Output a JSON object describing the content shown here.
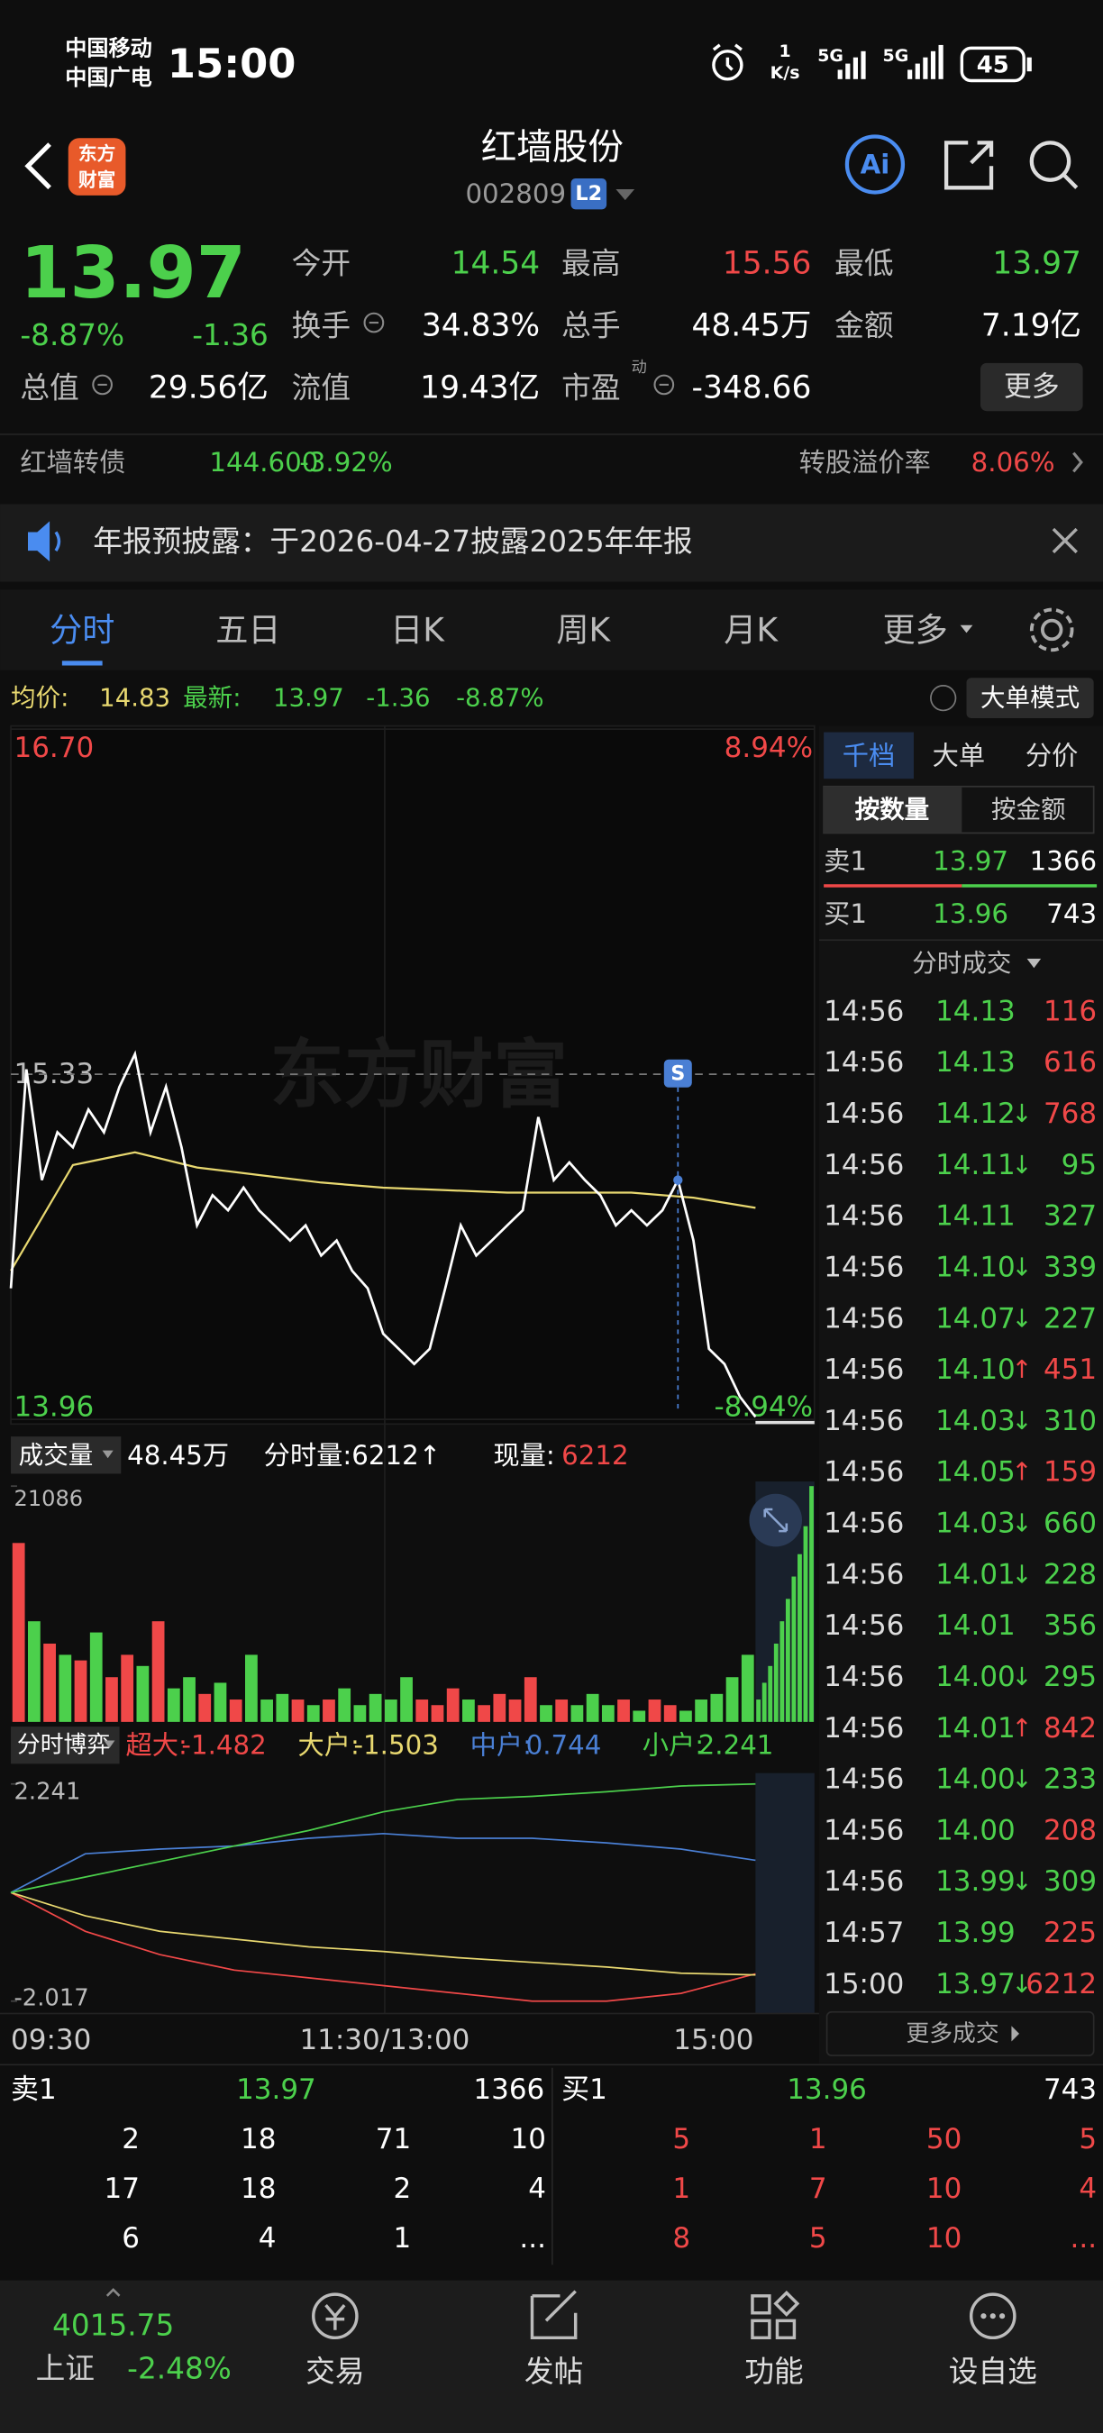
{
  "status_bar": {
    "carriers": [
      "中国移动",
      "中国广电"
    ],
    "time": "15:00",
    "net_speed": "1",
    "net_unit": "K/s",
    "battery": "45"
  },
  "header": {
    "logo": [
      "东方",
      "财富"
    ],
    "name": "红墙股份",
    "code": "002809",
    "level": "L2"
  },
  "quote": {
    "price": "13.97",
    "change_pct": "-8.87%",
    "change": "-1.36",
    "stats": [
      {
        "label": "今开",
        "value": "14.54",
        "color": "#4cd04c"
      },
      {
        "label": "最高",
        "value": "15.56",
        "color": "#f04848"
      },
      {
        "label": "最低",
        "value": "13.97",
        "color": "#4cd04c"
      },
      {
        "label": "换手",
        "value": "34.83%",
        "color": "#ffffff"
      },
      {
        "label": "总手",
        "value": "48.45万",
        "color": "#ffffff"
      },
      {
        "label": "金额",
        "value": "7.19亿",
        "color": "#ffffff"
      },
      {
        "label": "总值",
        "value": "29.56亿",
        "color": "#ffffff"
      },
      {
        "label": "流值",
        "value": "19.43亿",
        "color": "#ffffff"
      },
      {
        "label": "市盈",
        "note": "动",
        "value": "-348.66",
        "color": "#ffffff"
      }
    ],
    "more": "更多"
  },
  "bond": {
    "name": "红墙转债",
    "price": "144.600",
    "change": "-3.92%",
    "premium_label": "转股溢价率",
    "premium": "8.06%"
  },
  "notice": "年报预披露：于2026-04-27披露2025年年报",
  "tabs": [
    "分时",
    "五日",
    "日K",
    "周K",
    "月K",
    "更多"
  ],
  "info_bar": {
    "avg_label": "均价:",
    "avg": "14.83",
    "latest_label": "最新:",
    "latest": "13.97",
    "change": "-1.36",
    "change_pct": "-8.87%",
    "mode": "大单模式"
  },
  "intraday": {
    "type": "line",
    "ylim": [
      13.96,
      16.7
    ],
    "yticks": [
      {
        "value": 16.7,
        "label": "16.70"
      },
      {
        "value": 15.33,
        "label": "15.33"
      },
      13.96
    ],
    "pct_labels": [
      "8.94%",
      "-8.94%"
    ],
    "watermark": "东方财富",
    "marker": "S",
    "price": {
      "color": "#ffffff",
      "values": [
        14.48,
        15.35,
        14.91,
        15.1,
        15.04,
        15.19,
        15.1,
        15.28,
        15.41,
        15.1,
        15.28,
        15.04,
        14.73,
        14.85,
        14.79,
        14.88,
        14.79,
        14.73,
        14.67,
        14.73,
        14.61,
        14.67,
        14.55,
        14.48,
        14.3,
        14.24,
        14.18,
        14.24,
        14.48,
        14.73,
        14.61,
        14.67,
        14.73,
        14.79,
        15.16,
        14.91,
        14.98,
        14.91,
        14.85,
        14.73,
        14.79,
        14.73,
        14.79,
        14.91,
        14.67,
        14.24,
        14.18,
        14.05,
        13.97
      ]
    },
    "average": {
      "color": "#e8d870",
      "values": [
        14.55,
        14.97,
        15.02,
        14.96,
        14.93,
        14.9,
        14.88,
        14.87,
        14.86,
        14.86,
        14.86,
        14.84,
        14.8
      ]
    },
    "time_labels": [
      "09:30",
      "11:30/13:00",
      "15:00"
    ]
  },
  "volume": {
    "type": "bar",
    "label": "成交量",
    "total": "48.45万",
    "minute_label": "分时量:6212↑",
    "current_label": "现量:",
    "current": "6212",
    "ylim": [
      0,
      21086
    ],
    "yticks": [
      21086
    ],
    "up_color": "#f04848",
    "down_color": "#4cd04c",
    "values": [
      16000,
      9000,
      7000,
      6000,
      5500,
      8000,
      4000,
      6000,
      5000,
      9000,
      3000,
      4000,
      2500,
      3500,
      2000,
      6000,
      2000,
      2500,
      2000,
      1500,
      2000,
      3000,
      1500,
      2500,
      2000,
      4000,
      2000,
      1500,
      3000,
      2000,
      1500,
      2500,
      2000,
      4000,
      1500,
      2000,
      1500,
      2500,
      1500,
      2000,
      1000,
      2000,
      1500,
      1000,
      2000,
      2500,
      4000,
      6000
    ],
    "tail": [
      2000,
      3500,
      5000,
      7000,
      9000,
      11000,
      13000,
      15000,
      17500,
      21086
    ]
  },
  "game": {
    "type": "line",
    "label": "分时博弈",
    "ylim": [
      -2.017,
      2.241
    ],
    "yticks": [
      2.241,
      -2.017
    ],
    "series": [
      {
        "name": "超大:",
        "label": "-1.482",
        "color": "#f04848",
        "values": [
          0.112,
          -0.648,
          -1.104,
          -1.408,
          -1.56,
          -1.712,
          -1.865,
          -2.017,
          -2.017,
          -1.865,
          -1.482
        ]
      },
      {
        "name": "大户:",
        "label": "-1.503",
        "color": "#e8d870",
        "values": [
          0.112,
          -0.344,
          -0.648,
          -0.8,
          -0.952,
          -1.043,
          -1.165,
          -1.256,
          -1.348,
          -1.469,
          -1.503
        ]
      },
      {
        "name": "中户:",
        "label": "0.744",
        "color": "#4a7fd4",
        "values": [
          0.112,
          0.872,
          0.964,
          1.025,
          1.177,
          1.268,
          1.177,
          1.177,
          1.085,
          0.964,
          0.744
        ]
      },
      {
        "name": "小户:",
        "label": "2.241",
        "color": "#4cd04c",
        "values": [
          0.112,
          0.416,
          0.72,
          1.025,
          1.329,
          1.694,
          1.937,
          1.998,
          2.089,
          2.2,
          2.241
        ]
      }
    ]
  },
  "panel": {
    "tabs": [
      "千档",
      "大单",
      "分价"
    ],
    "modes": [
      "按数量",
      "按金额"
    ],
    "ask": {
      "label": "卖1",
      "price": "13.97",
      "volume": "1366"
    },
    "bid": {
      "label": "买1",
      "price": "13.96",
      "volume": "743"
    },
    "trades_title": "分时成交",
    "more": "更多成交",
    "trades": [
      {
        "time": "14:56",
        "price": "14.13",
        "volume": "116",
        "color": "#f04848"
      },
      {
        "time": "14:56",
        "price": "14.13",
        "volume": "616",
        "color": "#f04848"
      },
      {
        "time": "14:56",
        "price": "14.12",
        "dir": "↓",
        "volume": "768",
        "color": "#f04848"
      },
      {
        "time": "14:56",
        "price": "14.11",
        "dir": "↓",
        "volume": "95",
        "color": "#4cd04c"
      },
      {
        "time": "14:56",
        "price": "14.11",
        "volume": "327",
        "color": "#4cd04c"
      },
      {
        "time": "14:56",
        "price": "14.10",
        "dir": "↓",
        "volume": "339",
        "color": "#4cd04c"
      },
      {
        "time": "14:56",
        "price": "14.07",
        "dir": "↓",
        "volume": "227",
        "color": "#4cd04c"
      },
      {
        "time": "14:56",
        "price": "14.10",
        "dir": "↑",
        "volume": "451",
        "color": "#f04848"
      },
      {
        "time": "14:56",
        "price": "14.03",
        "dir": "↓",
        "volume": "310",
        "color": "#4cd04c"
      },
      {
        "time": "14:56",
        "price": "14.05",
        "dir": "↑",
        "volume": "159",
        "color": "#f04848"
      },
      {
        "time": "14:56",
        "price": "14.03",
        "dir": "↓",
        "volume": "660",
        "color": "#4cd04c"
      },
      {
        "time": "14:56",
        "price": "14.01",
        "dir": "↓",
        "volume": "228",
        "color": "#4cd04c"
      },
      {
        "time": "14:56",
        "price": "14.01",
        "volume": "356",
        "color": "#4cd04c"
      },
      {
        "time": "14:56",
        "price": "14.00",
        "dir": "↓",
        "volume": "295",
        "color": "#4cd04c"
      },
      {
        "time": "14:56",
        "price": "14.01",
        "dir": "↑",
        "volume": "842",
        "color": "#f04848"
      },
      {
        "time": "14:56",
        "price": "14.00",
        "dir": "↓",
        "volume": "233",
        "color": "#4cd04c"
      },
      {
        "time": "14:56",
        "price": "14.00",
        "volume": "208",
        "color": "#f04848"
      },
      {
        "time": "14:56",
        "price": "13.99",
        "dir": "↓",
        "volume": "309",
        "color": "#4cd04c"
      },
      {
        "time": "14:57",
        "price": "13.99",
        "volume": "225",
        "color": "#f04848"
      },
      {
        "time": "15:00",
        "price": "13.97",
        "dir": "↓",
        "volume": "6212",
        "color": "#f04848"
      }
    ]
  },
  "order_book": {
    "ask": {
      "label": "卖1",
      "price": "13.97",
      "volume": "1366"
    },
    "bid": {
      "label": "买1",
      "price": "13.96",
      "volume": "743"
    },
    "ask_depth": [
      [
        "2",
        "18",
        "71",
        "10"
      ],
      [
        "17",
        "18",
        "2",
        "4"
      ],
      [
        "6",
        "4",
        "1",
        "..."
      ]
    ],
    "bid_depth": [
      [
        "5",
        "1",
        "50",
        "5"
      ],
      [
        "1",
        "7",
        "10",
        "4"
      ],
      [
        "8",
        "5",
        "10",
        "..."
      ]
    ]
  },
  "nav": {
    "index_value": "4015.75",
    "index_name": "上证",
    "index_change": "-2.48%",
    "items": [
      "交易",
      "发帖",
      "功能",
      "设自选"
    ]
  }
}
